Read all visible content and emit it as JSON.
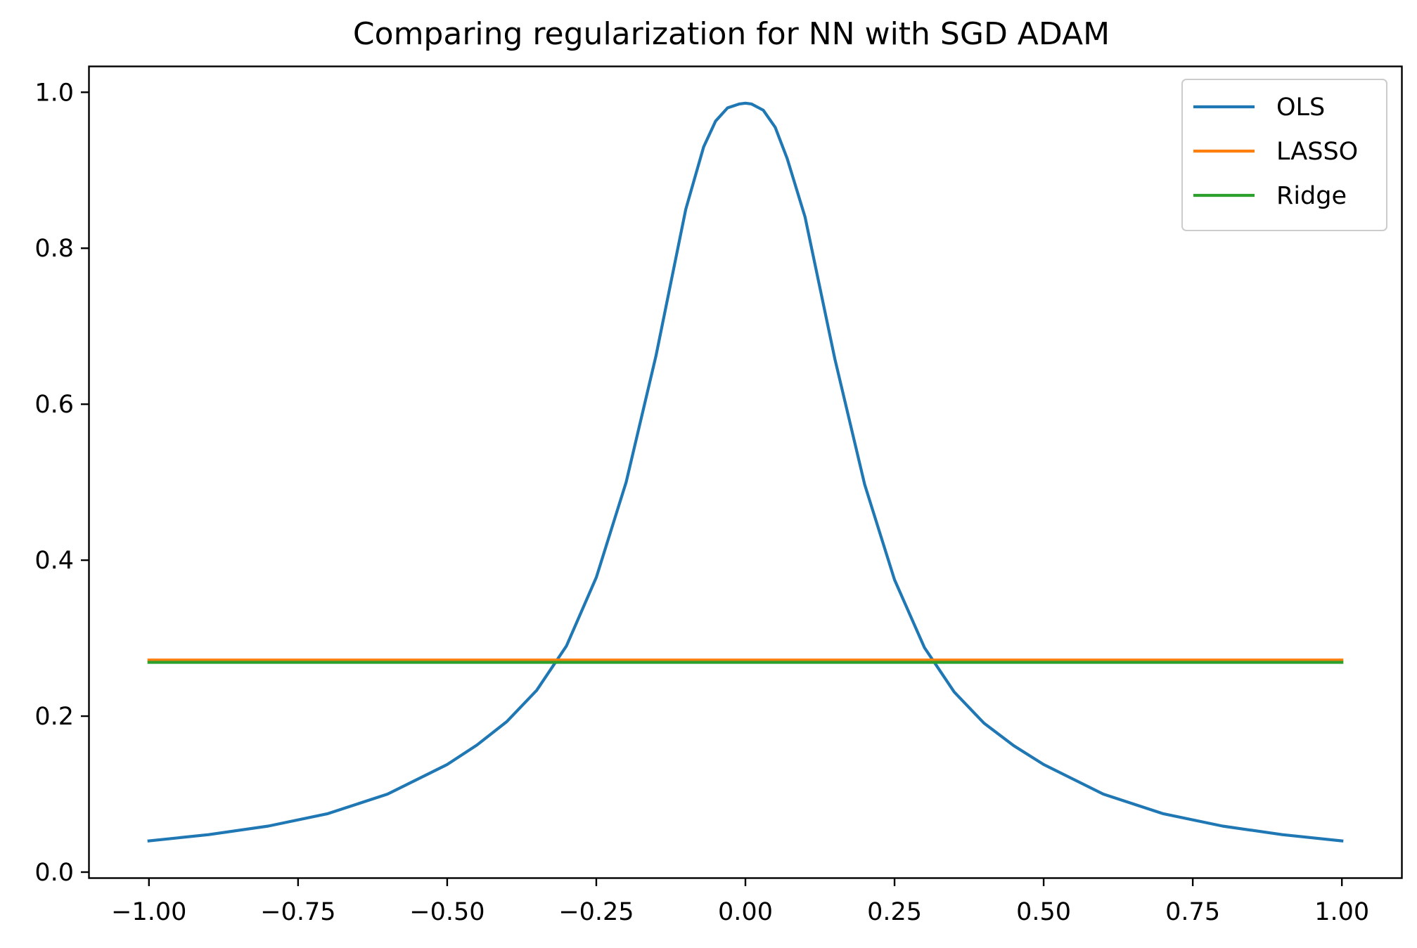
{
  "chart_data": {
    "type": "line",
    "title": "Comparing regularization for NN with SGD ADAM",
    "xlabel": "",
    "ylabel": "",
    "xlim": [
      -1.1,
      1.1
    ],
    "ylim": [
      -0.0072,
      1.0327
    ],
    "x_ticks": [
      -1.0,
      -0.75,
      -0.5,
      -0.25,
      0.0,
      0.25,
      0.5,
      0.75,
      1.0
    ],
    "x_tick_labels": [
      "−1.00",
      "−0.75",
      "−0.50",
      "−0.25",
      "0.00",
      "0.25",
      "0.50",
      "0.75",
      "1.00"
    ],
    "y_ticks": [
      0.0,
      0.2,
      0.4,
      0.6,
      0.8,
      1.0
    ],
    "y_tick_labels": [
      "0.0",
      "0.2",
      "0.4",
      "0.6",
      "0.8",
      "1.0"
    ],
    "grid": false,
    "legend_position": "top-right",
    "series": [
      {
        "name": "OLS",
        "color": "#1f77b4",
        "x": [
          -1.0,
          -0.9,
          -0.8,
          -0.7,
          -0.6,
          -0.5,
          -0.45,
          -0.4,
          -0.35,
          -0.3,
          -0.25,
          -0.2,
          -0.15,
          -0.1,
          -0.07,
          -0.05,
          -0.03,
          -0.01,
          0.0,
          0.01,
          0.03,
          0.05,
          0.07,
          0.1,
          0.15,
          0.2,
          0.25,
          0.3,
          0.35,
          0.4,
          0.45,
          0.5,
          0.6,
          0.7,
          0.8,
          0.9,
          1.0
        ],
        "y": [
          0.04,
          0.048,
          0.059,
          0.075,
          0.1,
          0.138,
          0.163,
          0.193,
          0.233,
          0.29,
          0.378,
          0.5,
          0.662,
          0.85,
          0.93,
          0.963,
          0.98,
          0.985,
          0.986,
          0.985,
          0.977,
          0.955,
          0.915,
          0.84,
          0.658,
          0.497,
          0.375,
          0.288,
          0.231,
          0.191,
          0.162,
          0.138,
          0.1,
          0.075,
          0.059,
          0.048,
          0.04
        ]
      },
      {
        "name": "LASSO",
        "color": "#ff7f0e",
        "x": [
          -1.0,
          1.0
        ],
        "y": [
          0.272,
          0.272
        ]
      },
      {
        "name": "Ridge",
        "color": "#2ca02c",
        "x": [
          -1.0,
          1.0
        ],
        "y": [
          0.269,
          0.269
        ]
      }
    ]
  }
}
